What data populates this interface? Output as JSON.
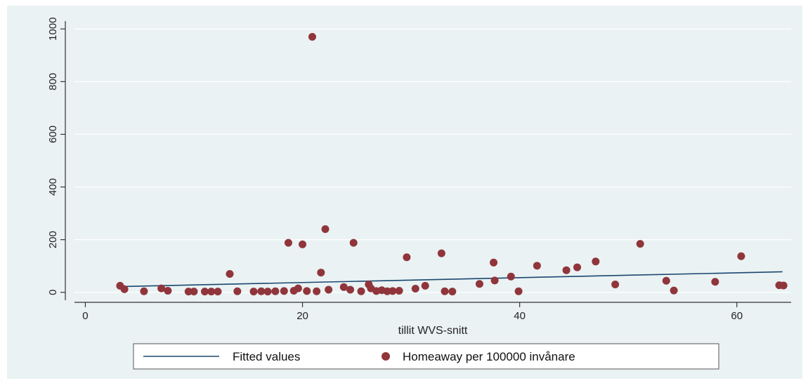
{
  "chart_data": {
    "type": "scatter",
    "xlabel": "tillit WVS-snitt",
    "ylabel": "",
    "xlim": [
      -1,
      65
    ],
    "ylim": [
      -30,
      1030
    ],
    "xticks": [
      0,
      20,
      40,
      60
    ],
    "yticks": [
      0,
      200,
      400,
      600,
      800,
      1000
    ],
    "grid": "horizontal",
    "legend_position": "bottom",
    "colors": {
      "scatter": "#90353b",
      "fit": "#1a476f",
      "background": "#eaf2f3",
      "grid": "#ffffff"
    },
    "series": [
      {
        "name": "Fitted values",
        "kind": "line",
        "points": [
          [
            3.5,
            22
          ],
          [
            64.2,
            78
          ]
        ]
      },
      {
        "name": "Homeaway per 100000 invånare",
        "kind": "scatter",
        "points": [
          [
            3.2,
            25
          ],
          [
            3.6,
            12
          ],
          [
            5.4,
            4
          ],
          [
            7.0,
            15
          ],
          [
            7.6,
            6
          ],
          [
            9.5,
            3
          ],
          [
            10.0,
            3
          ],
          [
            11.0,
            3
          ],
          [
            11.6,
            3
          ],
          [
            12.2,
            3
          ],
          [
            13.3,
            70
          ],
          [
            14.0,
            4
          ],
          [
            15.5,
            3
          ],
          [
            16.2,
            4
          ],
          [
            16.8,
            3
          ],
          [
            17.5,
            4
          ],
          [
            18.3,
            5
          ],
          [
            18.7,
            188
          ],
          [
            19.2,
            6
          ],
          [
            19.6,
            15
          ],
          [
            20.0,
            182
          ],
          [
            20.4,
            5
          ],
          [
            20.9,
            970
          ],
          [
            21.3,
            4
          ],
          [
            21.7,
            75
          ],
          [
            22.1,
            240
          ],
          [
            22.4,
            10
          ],
          [
            23.8,
            20
          ],
          [
            24.4,
            10
          ],
          [
            24.7,
            188
          ],
          [
            25.4,
            4
          ],
          [
            26.1,
            30
          ],
          [
            26.3,
            15
          ],
          [
            26.8,
            5
          ],
          [
            27.3,
            8
          ],
          [
            27.8,
            4
          ],
          [
            28.3,
            5
          ],
          [
            28.9,
            6
          ],
          [
            29.6,
            133
          ],
          [
            30.4,
            14
          ],
          [
            31.3,
            25
          ],
          [
            32.8,
            148
          ],
          [
            33.1,
            4
          ],
          [
            33.8,
            3
          ],
          [
            36.3,
            32
          ],
          [
            37.6,
            113
          ],
          [
            37.7,
            45
          ],
          [
            39.2,
            60
          ],
          [
            39.9,
            4
          ],
          [
            41.6,
            101
          ],
          [
            44.3,
            84
          ],
          [
            45.3,
            95
          ],
          [
            47.0,
            117
          ],
          [
            48.8,
            30
          ],
          [
            51.1,
            184
          ],
          [
            53.5,
            44
          ],
          [
            54.2,
            7
          ],
          [
            58.0,
            40
          ],
          [
            60.4,
            137
          ],
          [
            63.9,
            27
          ],
          [
            64.3,
            26
          ]
        ]
      }
    ]
  }
}
